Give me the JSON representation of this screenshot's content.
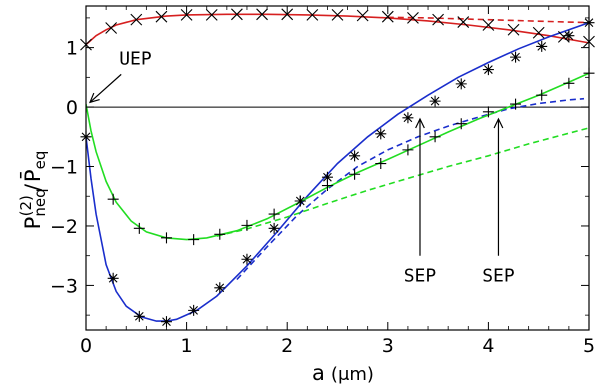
{
  "chart_data": {
    "type": "line",
    "title": "",
    "xlabel": {
      "main": "a",
      "unit": "(μm)"
    },
    "ylabel": {
      "main": "P",
      "sup": "(2)",
      "sub": "neq",
      "sep": "/",
      "main2": "P̄",
      "sub2": "eq"
    },
    "xlim": [
      0,
      5
    ],
    "ylim": [
      -3.75,
      1.7
    ],
    "xticks": [
      0,
      1,
      2,
      3,
      4,
      5
    ],
    "yticks": [
      -3,
      -2,
      -1,
      0,
      1
    ],
    "grid": false,
    "legend": "none",
    "series": [
      {
        "color": "#d62020",
        "style": "solid",
        "x": [
          0,
          0.1,
          0.2,
          0.3,
          0.5,
          0.8,
          1.0,
          1.4,
          1.8,
          2.2,
          2.6,
          3.0,
          3.4,
          3.8,
          4.2,
          4.6,
          5.0
        ],
        "y": [
          1.05,
          1.2,
          1.3,
          1.38,
          1.47,
          1.53,
          1.55,
          1.56,
          1.56,
          1.55,
          1.53,
          1.5,
          1.45,
          1.38,
          1.3,
          1.2,
          1.08
        ]
      },
      {
        "color": "#d62020",
        "style": "dashed",
        "x": [
          3.0,
          3.4,
          3.8,
          4.2,
          4.6,
          5.0
        ],
        "y": [
          1.51,
          1.5,
          1.48,
          1.46,
          1.44,
          1.42
        ]
      },
      {
        "color": "#1a2ecc",
        "style": "solid",
        "x": [
          0,
          0.05,
          0.1,
          0.2,
          0.3,
          0.4,
          0.55,
          0.7,
          0.8,
          0.9,
          1.1,
          1.3,
          1.6,
          1.9,
          2.2,
          2.5,
          2.8,
          3.1,
          3.4,
          3.7,
          4.0,
          4.3,
          4.6,
          5.0
        ],
        "y": [
          -0.5,
          -1.2,
          -1.8,
          -2.65,
          -3.1,
          -3.35,
          -3.53,
          -3.6,
          -3.6,
          -3.57,
          -3.42,
          -3.18,
          -2.67,
          -2.1,
          -1.5,
          -0.95,
          -0.5,
          -0.12,
          0.2,
          0.5,
          0.75,
          0.98,
          1.18,
          1.42
        ]
      },
      {
        "color": "#1a2ecc",
        "style": "dashed",
        "x": [
          1.5,
          1.8,
          2.1,
          2.4,
          2.7,
          3.0,
          3.3,
          3.6,
          3.9,
          4.2,
          4.5,
          4.8,
          4.95
        ],
        "y": [
          -2.9,
          -2.35,
          -1.82,
          -1.38,
          -1.0,
          -0.72,
          -0.5,
          -0.32,
          -0.17,
          -0.03,
          0.06,
          0.12,
          0.14
        ]
      },
      {
        "color": "#22dd22",
        "style": "solid",
        "x": [
          0,
          0.05,
          0.1,
          0.2,
          0.3,
          0.45,
          0.6,
          0.8,
          1.0,
          1.2,
          1.5,
          1.8,
          2.1,
          2.4,
          2.7,
          3.0,
          3.3,
          3.6,
          3.9,
          4.2,
          4.5,
          4.8,
          5.0
        ],
        "y": [
          0.05,
          -0.4,
          -0.75,
          -1.25,
          -1.6,
          -1.92,
          -2.1,
          -2.2,
          -2.23,
          -2.2,
          -2.08,
          -1.88,
          -1.62,
          -1.35,
          -1.1,
          -0.88,
          -0.65,
          -0.42,
          -0.2,
          0.0,
          0.2,
          0.42,
          0.57
        ]
      },
      {
        "color": "#22dd22",
        "style": "dashed",
        "x": [
          1.3,
          1.6,
          2.0,
          2.4,
          2.8,
          3.2,
          3.6,
          4.0,
          4.4,
          4.8,
          5.0
        ],
        "y": [
          -2.17,
          -2.05,
          -1.85,
          -1.62,
          -1.4,
          -1.2,
          -1.0,
          -0.82,
          -0.62,
          -0.44,
          -0.35
        ]
      }
    ],
    "markers": [
      {
        "shape": "x",
        "color": "#000000",
        "x": [
          0,
          0.25,
          0.5,
          0.75,
          1.0,
          1.25,
          1.5,
          1.75,
          2.0,
          2.25,
          2.5,
          2.75,
          3.0,
          3.25,
          3.5,
          3.75,
          4.0,
          4.25,
          4.5,
          4.75,
          5.0
        ],
        "y": [
          1.05,
          1.33,
          1.47,
          1.52,
          1.55,
          1.55,
          1.56,
          1.56,
          1.56,
          1.55,
          1.55,
          1.54,
          1.52,
          1.5,
          1.47,
          1.43,
          1.38,
          1.3,
          1.25,
          1.18,
          1.1
        ]
      },
      {
        "shape": "asterisk",
        "color": "#000000",
        "x": [
          0,
          0.27,
          0.53,
          0.8,
          1.07,
          1.33,
          1.6,
          1.87,
          2.13,
          2.4,
          2.67,
          2.93,
          3.2,
          3.47,
          3.73,
          4.0,
          4.27,
          4.53,
          4.8,
          5.0
        ],
        "y": [
          -0.5,
          -2.88,
          -3.52,
          -3.61,
          -3.42,
          -3.04,
          -2.56,
          -2.04,
          -1.58,
          -1.18,
          -0.82,
          -0.45,
          -0.18,
          0.1,
          0.39,
          0.63,
          0.84,
          1.02,
          1.2,
          1.42
        ]
      },
      {
        "shape": "plus",
        "color": "#000000",
        "x": [
          0.27,
          0.53,
          0.8,
          1.07,
          1.33,
          1.6,
          1.87,
          2.13,
          2.4,
          2.67,
          2.93,
          3.2,
          3.47,
          3.73,
          4.0,
          4.27,
          4.53,
          4.8,
          5.0
        ],
        "y": [
          -1.55,
          -2.04,
          -2.2,
          -2.23,
          -2.14,
          -1.99,
          -1.8,
          -1.58,
          -1.32,
          -1.13,
          -0.95,
          -0.72,
          -0.5,
          -0.28,
          -0.08,
          0.05,
          0.2,
          0.4,
          0.57
        ]
      }
    ],
    "annotations": [
      {
        "text": "UEP",
        "arrow_from": [
          0.35,
          0.55
        ],
        "arrow_to": [
          0.04,
          0.08
        ]
      },
      {
        "text": "SEP",
        "arrow_from": [
          3.32,
          -2.5
        ],
        "arrow_to": [
          3.32,
          -0.2
        ]
      },
      {
        "text": "SEP",
        "arrow_from": [
          4.1,
          -2.5
        ],
        "arrow_to": [
          4.1,
          -0.2
        ]
      }
    ]
  }
}
